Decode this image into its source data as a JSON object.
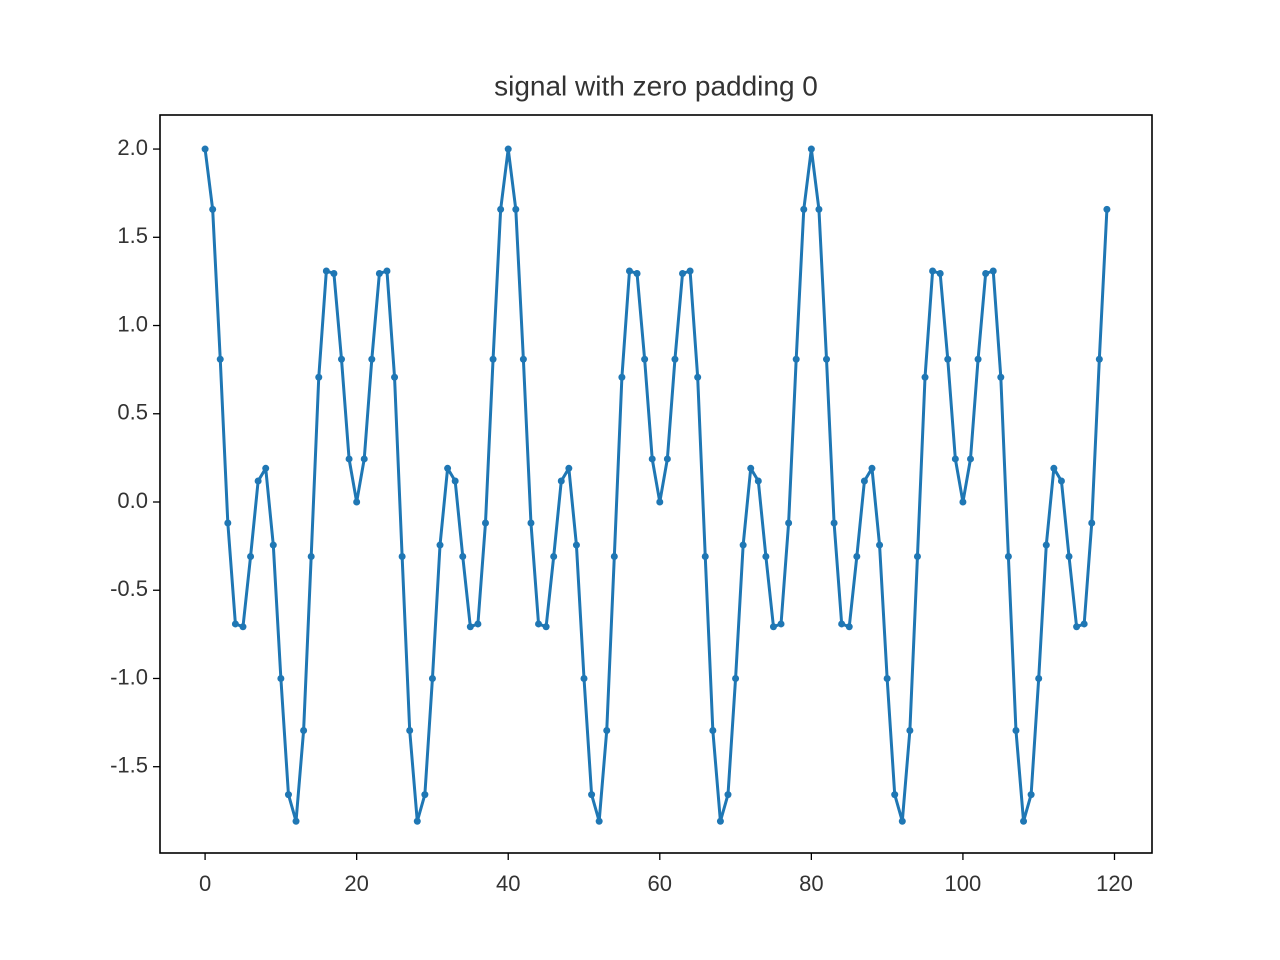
{
  "chart_data": {
    "type": "line",
    "title": "signal with zero padding 0",
    "x": [
      0,
      1,
      2,
      3,
      4,
      5,
      6,
      7,
      8,
      9,
      10,
      11,
      12,
      13,
      14,
      15,
      16,
      17,
      18,
      19,
      20,
      21,
      22,
      23,
      24,
      25,
      26,
      27,
      28,
      29,
      30,
      31,
      32,
      33,
      34,
      35,
      36,
      37,
      38,
      39,
      40,
      41,
      42,
      43,
      44,
      45,
      46,
      47,
      48,
      49,
      50,
      51,
      52,
      53,
      54,
      55,
      56,
      57,
      58,
      59,
      60,
      61,
      62,
      63,
      64,
      65,
      66,
      67,
      68,
      69,
      70,
      71,
      72,
      73,
      74,
      75,
      76,
      77,
      78,
      79,
      80,
      81,
      82,
      83,
      84,
      85,
      86,
      87,
      88,
      89,
      90,
      91,
      92,
      93,
      94,
      95,
      96,
      97,
      98,
      99,
      100,
      101,
      102,
      103,
      104,
      105,
      106,
      107,
      108,
      109,
      110,
      111,
      112,
      113,
      114,
      115,
      116,
      117,
      118,
      119
    ],
    "series": [
      {
        "color": "#1f77b4",
        "values": [
          2,
          1.658,
          0.809,
          -0.119,
          -0.691,
          -0.707,
          -0.309,
          0.119,
          0.191,
          -0.244,
          -1,
          -1.658,
          -1.809,
          -1.295,
          -0.309,
          0.707,
          1.309,
          1.295,
          0.809,
          0.244,
          0,
          0.244,
          0.809,
          1.295,
          1.309,
          0.707,
          -0.309,
          -1.295,
          -1.809,
          -1.658,
          -1,
          -0.244,
          0.191,
          0.119,
          -0.309,
          -0.707,
          -0.691,
          -0.119,
          0.809,
          1.658,
          2,
          1.658,
          0.809,
          -0.119,
          -0.691,
          -0.707,
          -0.309,
          0.119,
          0.191,
          -0.244,
          -1,
          -1.658,
          -1.809,
          -1.295,
          -0.309,
          0.707,
          1.309,
          1.295,
          0.809,
          0.244,
          0,
          0.244,
          0.809,
          1.295,
          1.309,
          0.707,
          -0.309,
          -1.295,
          -1.809,
          -1.658,
          -1,
          -0.244,
          0.191,
          0.119,
          -0.309,
          -0.707,
          -0.691,
          -0.119,
          0.809,
          1.658,
          2,
          1.658,
          0.809,
          -0.119,
          -0.691,
          -0.707,
          -0.309,
          0.119,
          0.191,
          -0.244,
          -1,
          -1.658,
          -1.809,
          -1.295,
          -0.309,
          0.707,
          1.309,
          1.295,
          0.809,
          0.244,
          0,
          0.244,
          0.809,
          1.295,
          1.309,
          0.707,
          -0.309,
          -1.295,
          -1.809,
          -1.658,
          -1,
          -0.244,
          0.191,
          0.119,
          -0.309,
          -0.707,
          -0.691,
          -0.119,
          0.809,
          1.658
        ]
      }
    ],
    "xlim": [
      -5.95,
      124.95
    ],
    "xticks": [
      0,
      20,
      40,
      60,
      80,
      100,
      120
    ],
    "ylim": [
      -1.989,
      2.193
    ],
    "yticks": [
      {
        "value": -1.5,
        "label": "-1.5"
      },
      {
        "value": -1,
        "label": "-1.0"
      },
      {
        "value": -0.5,
        "label": "-0.5"
      },
      {
        "value": 0,
        "label": "0.0"
      },
      {
        "value": 0.5,
        "label": "0.5"
      },
      {
        "value": 1,
        "label": "1.0"
      },
      {
        "value": 1.5,
        "label": "1.5"
      },
      {
        "value": 2,
        "label": "2.0"
      }
    ]
  }
}
